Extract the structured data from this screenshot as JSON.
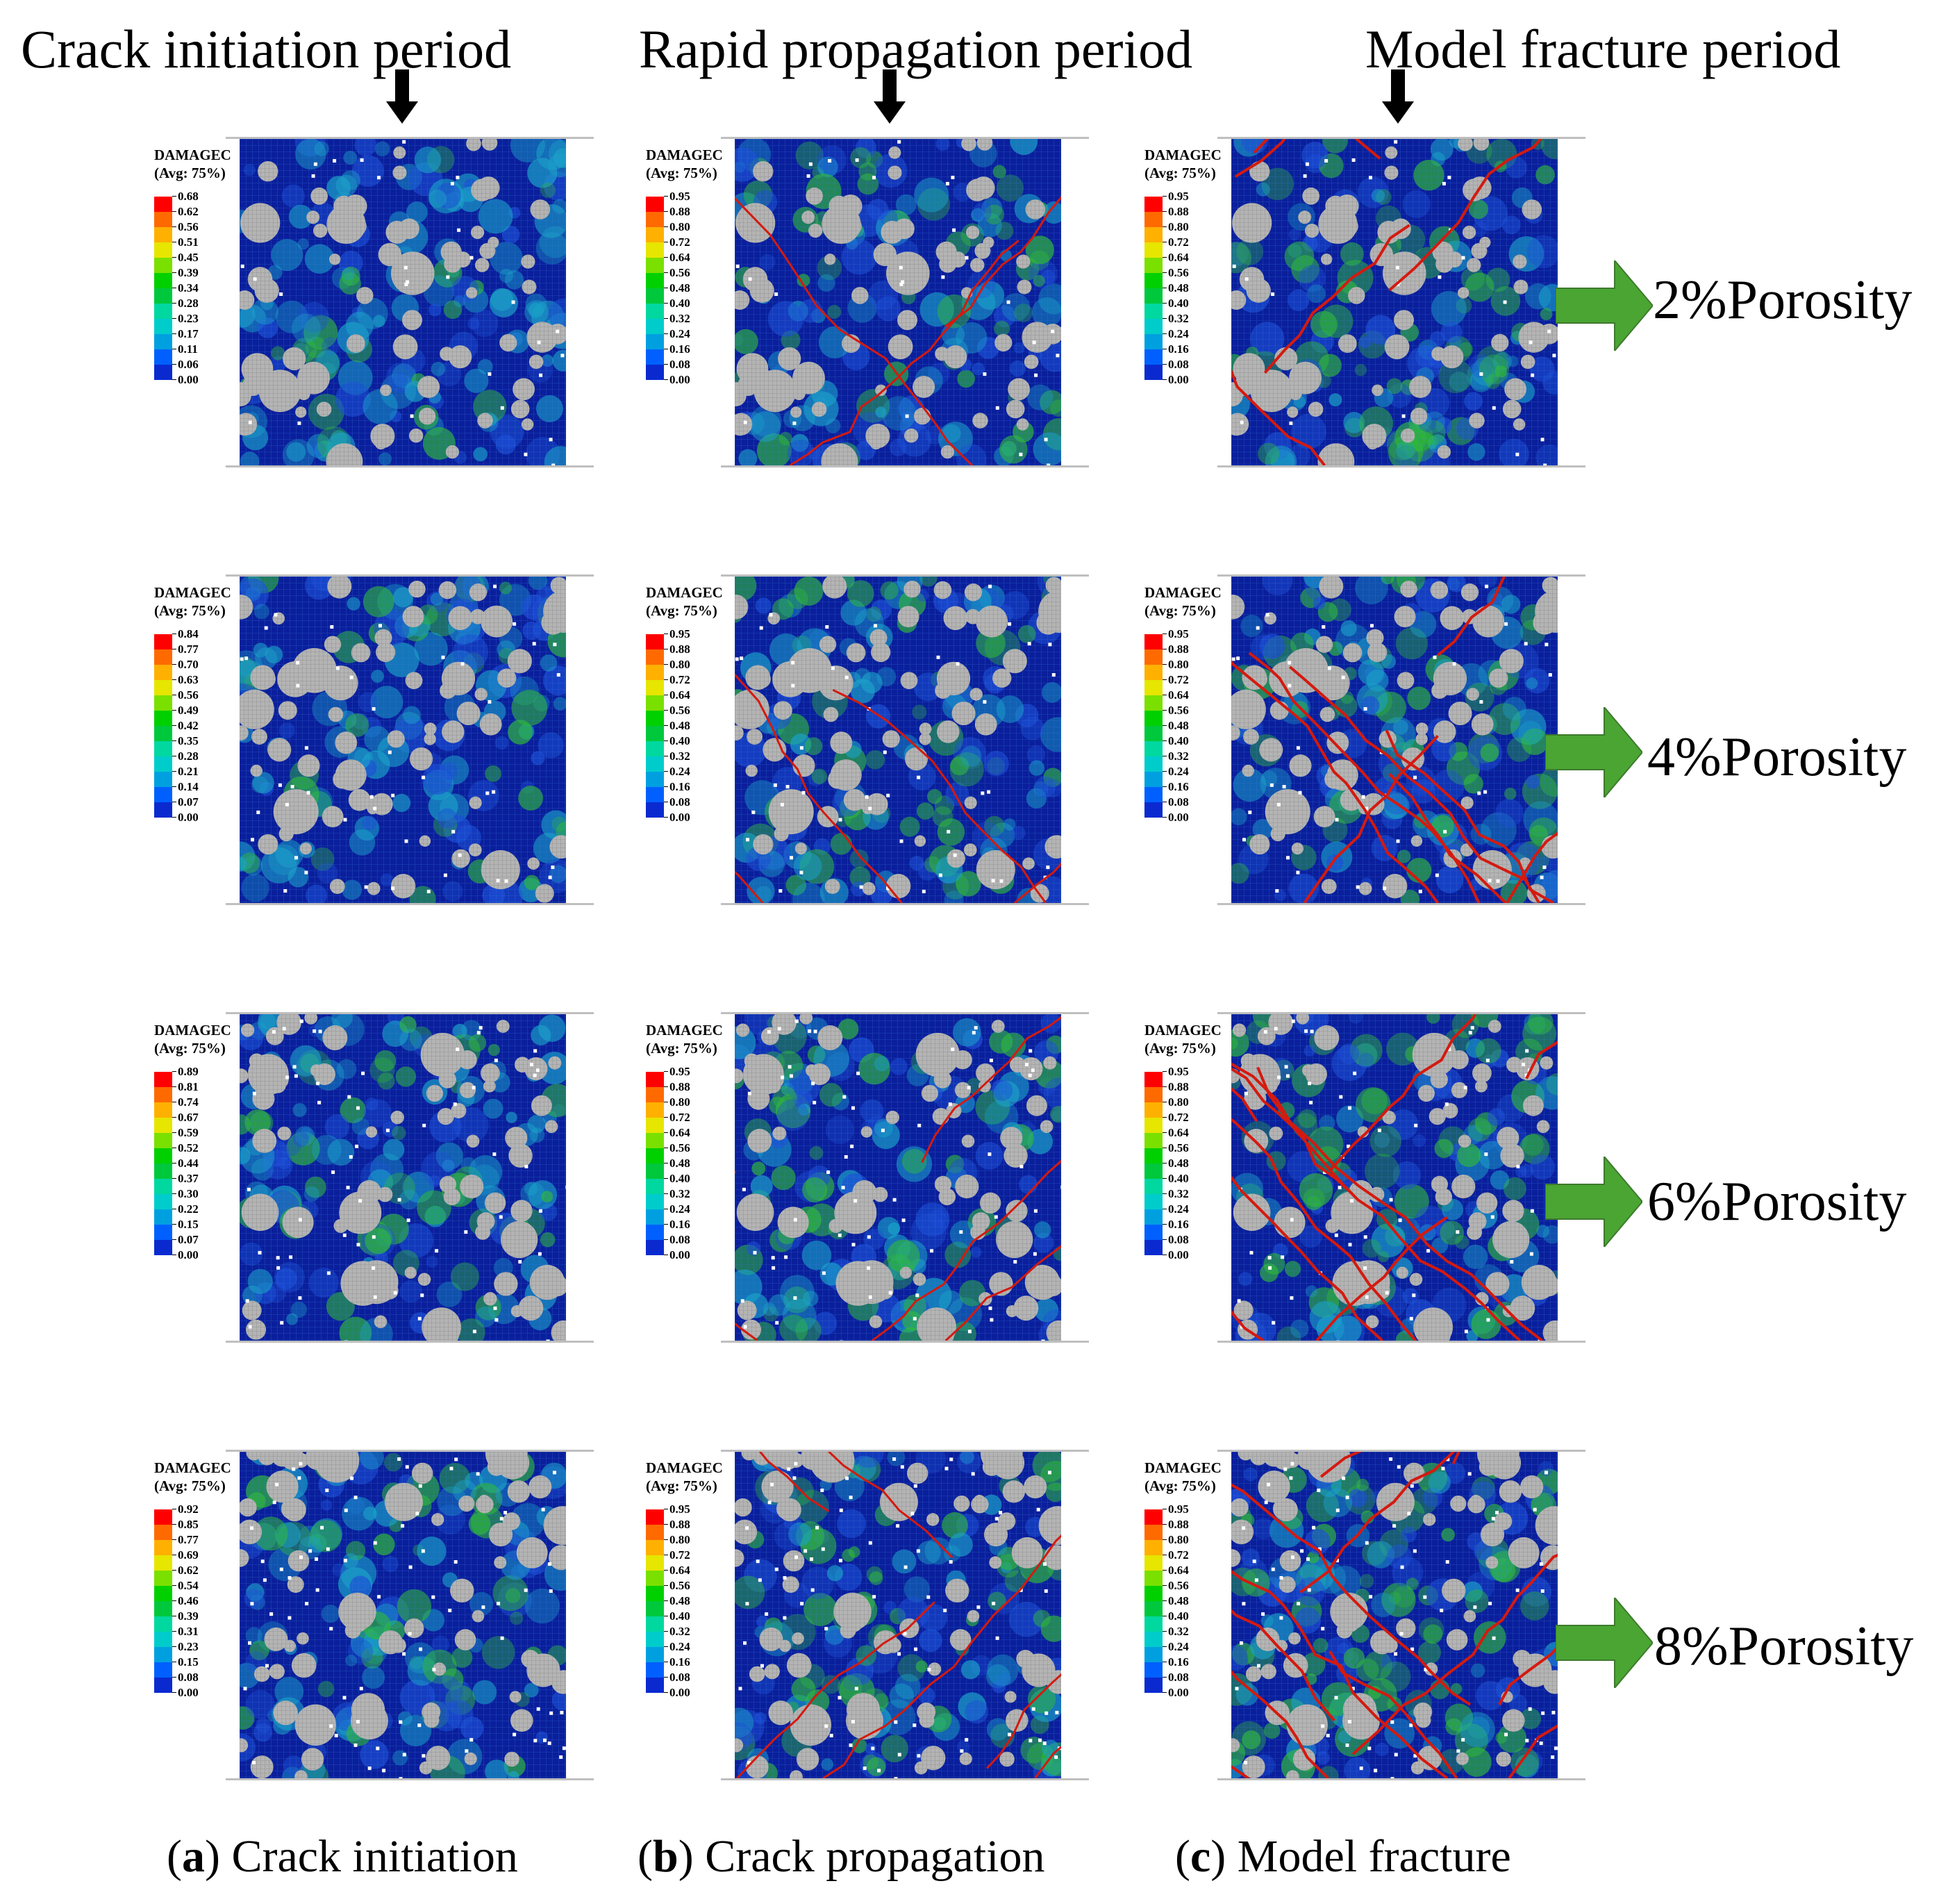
{
  "headers": {
    "col_a": "Crack initiation period",
    "col_b": "Rapid propagation period",
    "col_c": "Model fracture period"
  },
  "legend": {
    "title": "DAMAGEC",
    "subtitle": "(Avg: 75%)",
    "colors": [
      "#ff0000",
      "#ff6a00",
      "#ffb000",
      "#e6e600",
      "#7ae000",
      "#00d000",
      "#00c83c",
      "#00d8a0",
      "#00cccc",
      "#00a0e0",
      "#0060ff",
      "#0a2ad0"
    ],
    "series_ticks": [
      [
        "0.68",
        "0.62",
        "0.56",
        "0.51",
        "0.45",
        "0.39",
        "0.34",
        "0.28",
        "0.23",
        "0.17",
        "0.11",
        "0.06",
        "0.00"
      ],
      [
        "0.84",
        "0.77",
        "0.70",
        "0.63",
        "0.56",
        "0.49",
        "0.42",
        "0.35",
        "0.28",
        "0.21",
        "0.14",
        "0.07",
        "0.00"
      ],
      [
        "0.89",
        "0.81",
        "0.74",
        "0.67",
        "0.59",
        "0.52",
        "0.44",
        "0.37",
        "0.30",
        "0.22",
        "0.15",
        "0.07",
        "0.00"
      ],
      [
        "0.92",
        "0.85",
        "0.77",
        "0.69",
        "0.62",
        "0.54",
        "0.46",
        "0.39",
        "0.31",
        "0.23",
        "0.15",
        "0.08",
        "0.00"
      ]
    ],
    "fracture_ticks": [
      "0.95",
      "0.88",
      "0.80",
      "0.72",
      "0.64",
      "0.56",
      "0.48",
      "0.40",
      "0.32",
      "0.24",
      "0.16",
      "0.08",
      "0.00"
    ]
  },
  "rows": [
    {
      "porosity": "2%Porosity"
    },
    {
      "porosity": "4%Porosity"
    },
    {
      "porosity": "6%Porosity"
    },
    {
      "porosity": "8%Porosity"
    }
  ],
  "captions": {
    "a_letter": "a",
    "a_text": " Crack initiation",
    "b_letter": "b",
    "b_text": " Crack propagation",
    "c_letter": "c",
    "c_text": " Model fracture"
  },
  "colors": {
    "matrix_blue": "#0a1f9c",
    "aggregate_grey": "#a8a8a8",
    "crack_red": "#d41a10",
    "damage_green": "#2fb83a",
    "arrow_green": "#4aa533"
  },
  "icons": [
    "down-arrow-icon",
    "right-arrow-icon"
  ]
}
